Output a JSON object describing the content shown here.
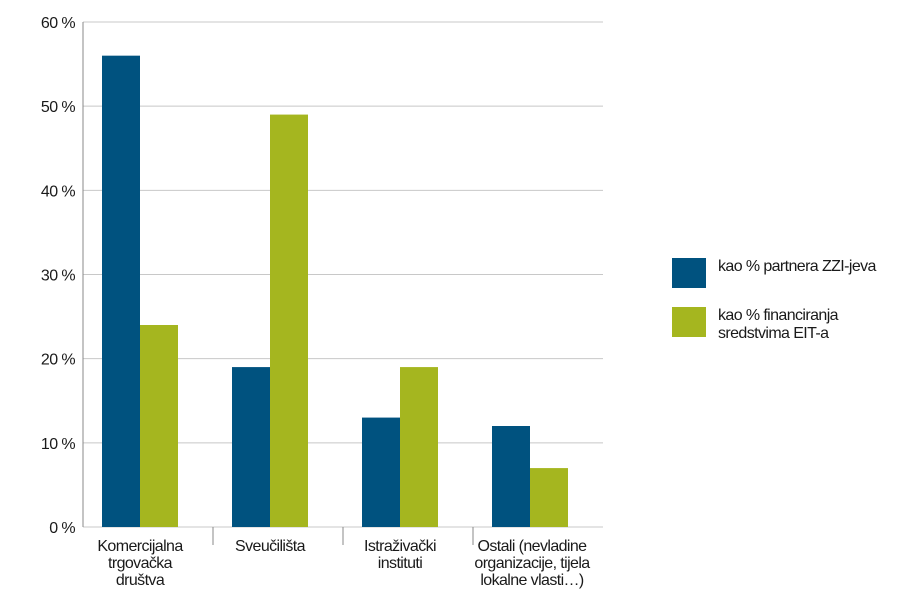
{
  "chart_data": {
    "type": "bar",
    "categories": [
      [
        "Komercijalna",
        "trgovačka",
        "društva"
      ],
      [
        "Sveučilišta"
      ],
      [
        "Istraživački",
        "instituti"
      ],
      [
        "Ostali (nevladine",
        "organizacije, tijela",
        "lokalne vlasti…)"
      ]
    ],
    "series": [
      {
        "name": "kao % partnera ZZI-jeva",
        "color": "#00527f",
        "values": [
          56,
          19,
          13,
          12
        ]
      },
      {
        "name": "kao % financiranja sredstvima EIT-a",
        "color": "#a5b61f",
        "values": [
          24,
          49,
          19,
          7
        ]
      }
    ],
    "ylim": [
      0,
      60
    ],
    "yticks": [
      {
        "value": 0,
        "label": "0 %"
      },
      {
        "value": 10,
        "label": "10 %"
      },
      {
        "value": 20,
        "label": "20 %"
      },
      {
        "value": 30,
        "label": "30 %"
      },
      {
        "value": 40,
        "label": "40 %"
      },
      {
        "value": 50,
        "label": "50 %"
      },
      {
        "value": 60,
        "label": "60 %"
      }
    ],
    "grid": true,
    "legend": "right"
  }
}
